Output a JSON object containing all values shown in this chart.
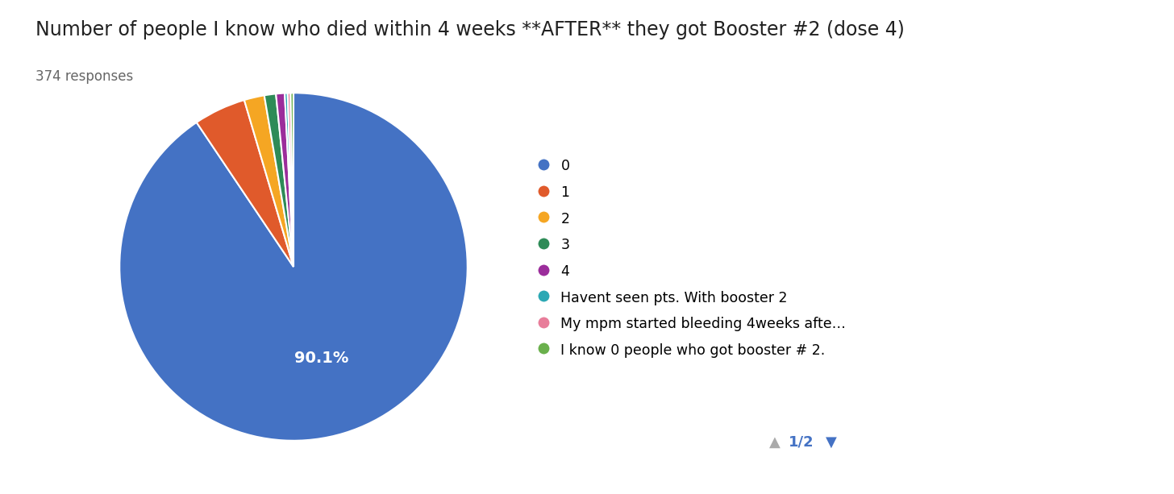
{
  "title": "Number of people I know who died within 4 weeks **AFTER** they got Booster #2 (dose 4)",
  "subtitle": "374 responses",
  "labels": [
    "0",
    "1",
    "2",
    "3",
    "4",
    "Havent seen pts. With booster 2",
    "My mpm started bleeding 4weeks afte…",
    "I know 0 people who got booster # 2."
  ],
  "values": [
    337,
    18,
    7,
    4,
    3,
    1,
    1,
    1
  ],
  "colors": [
    "#4472C4",
    "#E05A2B",
    "#F5A623",
    "#2E8B57",
    "#9B2D9B",
    "#2BA8B4",
    "#E87D9A",
    "#6AB04C"
  ],
  "autopct_label": "90.1%",
  "autopct_index": 0,
  "background_color": "#ffffff",
  "title_fontsize": 17,
  "subtitle_fontsize": 12,
  "legend_fontsize": 12.5,
  "label_fontsize": 14,
  "legend_labels_display": [
    "0",
    "1",
    "2",
    "3",
    "4",
    "Havent seen pts. With booster 2",
    "My mpm started bleeding 4weeks afte…",
    "I know 0 people who got booster # 2."
  ],
  "pie_startangle": 90,
  "pie_pctdistance": 0.55
}
